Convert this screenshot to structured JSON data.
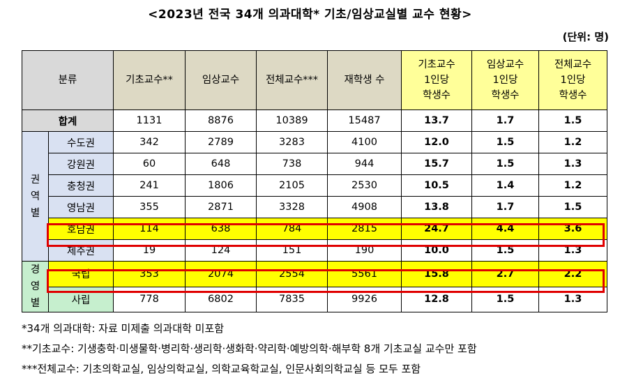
{
  "title": "<2023년 전국 34개 의과대학* 기초/임상교실별 교수 현황>",
  "unit": "(단위: 명)",
  "headers": {
    "category": "분류",
    "basic": "기초교수**",
    "clinical": "임상교수",
    "total": "전체교수***",
    "students": "재학생 수",
    "basic_ratio": [
      "기초교수",
      "1인당",
      "학생수"
    ],
    "clinical_ratio": [
      "임상교수",
      "1인당",
      "학생수"
    ],
    "total_ratio": [
      "전체교수",
      "1인당",
      "학생수"
    ]
  },
  "total_row": {
    "label": "합계",
    "basic": "1131",
    "clinical": "8876",
    "total": "10389",
    "students": "15487",
    "basic_ratio": "13.7",
    "clinical_ratio": "1.7",
    "total_ratio": "1.5"
  },
  "region_group": [
    "권",
    "역",
    "별"
  ],
  "regions": [
    {
      "label": "수도권",
      "basic": "342",
      "clinical": "2789",
      "total": "3283",
      "students": "4100",
      "basic_ratio": "12.0",
      "clinical_ratio": "1.5",
      "total_ratio": "1.2"
    },
    {
      "label": "강원권",
      "basic": "60",
      "clinical": "648",
      "total": "738",
      "students": "944",
      "basic_ratio": "15.7",
      "clinical_ratio": "1.5",
      "total_ratio": "1.3"
    },
    {
      "label": "충청권",
      "basic": "241",
      "clinical": "1806",
      "total": "2105",
      "students": "2530",
      "basic_ratio": "10.5",
      "clinical_ratio": "1.4",
      "total_ratio": "1.2"
    },
    {
      "label": "영남권",
      "basic": "355",
      "clinical": "2871",
      "total": "3328",
      "students": "4908",
      "basic_ratio": "13.8",
      "clinical_ratio": "1.7",
      "total_ratio": "1.5"
    },
    {
      "label": "호남권",
      "basic": "114",
      "clinical": "638",
      "total": "784",
      "students": "2815",
      "basic_ratio": "24.7",
      "clinical_ratio": "4.4",
      "total_ratio": "3.6"
    },
    {
      "label": "제주권",
      "basic": "19",
      "clinical": "124",
      "total": "151",
      "students": "190",
      "basic_ratio": "10.0",
      "clinical_ratio": "1.5",
      "total_ratio": "1.3"
    }
  ],
  "ownership_group": [
    "경",
    "영",
    "별"
  ],
  "ownership": [
    {
      "label": "국립",
      "basic": "353",
      "clinical": "2074",
      "total": "2554",
      "students": "5561",
      "basic_ratio": "15.8",
      "clinical_ratio": "2.7",
      "total_ratio": "2.2"
    },
    {
      "label": "사립",
      "basic": "778",
      "clinical": "6802",
      "total": "7835",
      "students": "9926",
      "basic_ratio": "12.8",
      "clinical_ratio": "1.5",
      "total_ratio": "1.3"
    }
  ],
  "notes": [
    "*34개 의과대학: 자료 미제출 의과대학 미포함",
    "**기초교수: 기생충학·미생물학·병리학·생리학·생화학·약리학·예방의학·해부학 8개 기초교실 교수만 포함",
    "***전체교수: 기초의학교실, 임상의학교실, 의학교육학교실, 인문사회의학교실 등 모두 포함"
  ]
}
